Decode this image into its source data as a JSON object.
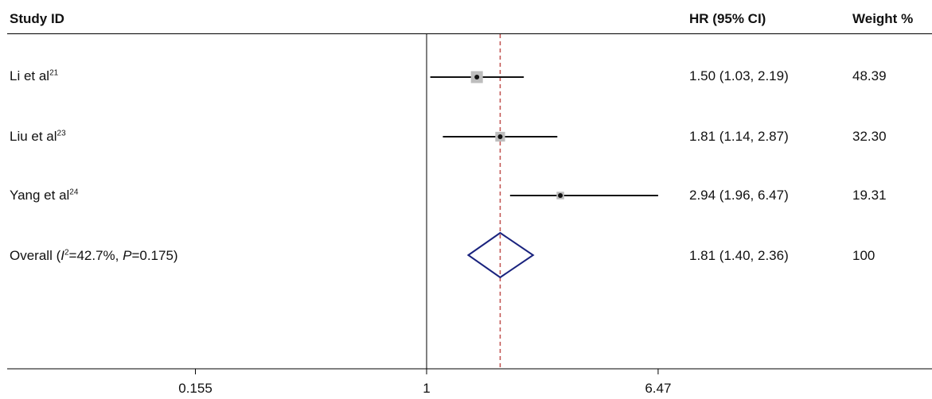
{
  "header": {
    "study_label": "Study ID",
    "hr_label": "HR (95% CI)",
    "weight_label": "Weight %"
  },
  "rows": [
    {
      "study": "Li et al",
      "ref": "21",
      "hr": "1.50 (1.03, 2.19)",
      "weight": "48.39"
    },
    {
      "study": "Liu et al",
      "ref": "23",
      "hr": "1.81 (1.14, 2.87)",
      "weight": "32.30"
    },
    {
      "study": "Yang et al",
      "ref": "24",
      "hr": "2.94 (1.96, 6.47)",
      "weight": "19.31"
    }
  ],
  "overall": {
    "prefix": "Overall (",
    "i2_symbol": "I",
    "i2_sup": "2",
    "i2_value": "=42.7%, ",
    "p_symbol": "P",
    "p_value": "=0.175)",
    "hr": "1.81 (1.40, 2.36)",
    "weight": "100"
  },
  "chart_data": {
    "type": "forest",
    "scale": "log",
    "x_ticks": [
      0.155,
      1,
      6.47
    ],
    "x_tick_labels": [
      "0.155",
      "1",
      "6.47"
    ],
    "null_line": 1,
    "overall_line": 1.81,
    "studies": [
      {
        "name": "Li et al",
        "hr": 1.5,
        "lower": 1.03,
        "upper": 2.19,
        "weight": 48.39
      },
      {
        "name": "Liu et al",
        "hr": 1.81,
        "lower": 1.14,
        "upper": 2.87,
        "weight": 32.3
      },
      {
        "name": "Yang et al",
        "hr": 2.94,
        "lower": 1.96,
        "upper": 6.47,
        "weight": 19.31
      }
    ],
    "overall": {
      "hr": 1.81,
      "lower": 1.4,
      "upper": 2.36,
      "weight": 100
    },
    "colors": {
      "ci_line": "#111111",
      "weight_box": "#bdbdbd",
      "diamond": "#1a237e",
      "overall_line": "#c0504d",
      "axis": "#000000"
    }
  }
}
